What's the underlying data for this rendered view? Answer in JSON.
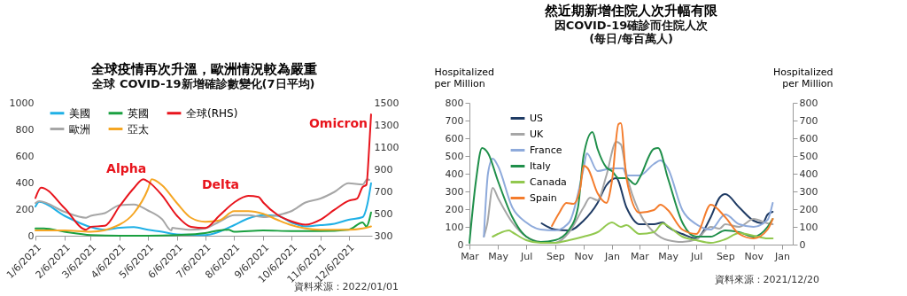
{
  "chart_data": [
    {
      "type": "line",
      "title": "全球疫情再次升溫，歐洲情況較為嚴重",
      "subtitle": "全球 COVID-19新增確診數變化(7日平均)",
      "xlim": [
        "2021-01-06",
        "2021-12-31"
      ],
      "xticks": [
        {
          "value": "2021-01-06",
          "label": "1/6/2021"
        },
        {
          "value": "2021-02-06",
          "label": "2/6/2021"
        },
        {
          "value": "2021-03-06",
          "label": "3/6/2021"
        },
        {
          "value": "2021-04-06",
          "label": "4/6/2021"
        },
        {
          "value": "2021-05-06",
          "label": "5/6/2021"
        },
        {
          "value": "2021-06-06",
          "label": "6/6/2021"
        },
        {
          "value": "2021-07-06",
          "label": "7/6/2021"
        },
        {
          "value": "2021-08-06",
          "label": "8/6/2021"
        },
        {
          "value": "2021-09-06",
          "label": "9/6/2021"
        },
        {
          "value": "2021-10-06",
          "label": "10/6/2021"
        },
        {
          "value": "2021-11-06",
          "label": "11/6/2021"
        },
        {
          "value": "2021-12-06",
          "label": "12/6/2021"
        }
      ],
      "ylim": [
        0,
        1000
      ],
      "yticks": [
        0,
        200,
        400,
        600,
        800,
        1000
      ],
      "y2lim": [
        300,
        1500
      ],
      "y2ticks": [
        300,
        500,
        700,
        900,
        1100,
        1300,
        1500
      ],
      "legend": "top left",
      "series": [
        {
          "name": "美國",
          "color": "#1fb0e6",
          "x": [
            "2021-01-06",
            "2021-01-10",
            "2021-02-06",
            "2021-03-06",
            "2021-03-21",
            "2021-04-06",
            "2021-04-21",
            "2021-05-06",
            "2021-05-21",
            "2021-06-06",
            "2021-07-06",
            "2021-07-21",
            "2021-08-06",
            "2021-08-21",
            "2021-09-06",
            "2021-09-21",
            "2021-10-06",
            "2021-10-21",
            "2021-11-06",
            "2021-11-21",
            "2021-12-06",
            "2021-12-21",
            "2021-12-26",
            "2021-12-30"
          ],
          "values": [
            220,
            255,
            150,
            65,
            45,
            60,
            65,
            45,
            30,
            10,
            5,
            30,
            80,
            130,
            155,
            150,
            100,
            70,
            80,
            90,
            120,
            140,
            235,
            395
          ]
        },
        {
          "name": "歐洲",
          "color": "#a6a6a6",
          "x": [
            "2021-01-06",
            "2021-01-10",
            "2021-02-06",
            "2021-03-01",
            "2021-03-06",
            "2021-03-21",
            "2021-04-06",
            "2021-04-21",
            "2021-05-06",
            "2021-05-21",
            "2021-05-31",
            "2021-06-01",
            "2021-06-06",
            "2021-06-21",
            "2021-07-06",
            "2021-07-21",
            "2021-08-06",
            "2021-08-21",
            "2021-09-06",
            "2021-09-21",
            "2021-10-06",
            "2021-10-21",
            "2021-11-06",
            "2021-11-21",
            "2021-12-06",
            "2021-12-21",
            "2021-12-26",
            "2021-12-28"
          ],
          "values": [
            245,
            260,
            180,
            135,
            150,
            170,
            230,
            235,
            190,
            125,
            40,
            60,
            55,
            45,
            55,
            105,
            155,
            155,
            140,
            155,
            185,
            250,
            280,
            330,
            395,
            385,
            425,
            420
          ]
        },
        {
          "name": "英國",
          "color": "#1aa040",
          "x": [
            "2021-01-06",
            "2021-01-15",
            "2021-02-06",
            "2021-03-06",
            "2021-04-06",
            "2021-05-06",
            "2021-06-06",
            "2021-07-06",
            "2021-07-21",
            "2021-07-31",
            "2021-08-06",
            "2021-09-06",
            "2021-10-06",
            "2021-11-06",
            "2021-12-06",
            "2021-12-21",
            "2021-12-25",
            "2021-12-30"
          ],
          "values": [
            55,
            55,
            30,
            5,
            0,
            0,
            5,
            20,
            40,
            45,
            30,
            40,
            35,
            35,
            45,
            100,
            70,
            175
          ]
        },
        {
          "name": "亞太",
          "color": "#f5a623",
          "x": [
            "2021-01-06",
            "2021-02-06",
            "2021-03-06",
            "2021-04-06",
            "2021-04-21",
            "2021-05-06",
            "2021-05-10",
            "2021-05-21",
            "2021-06-06",
            "2021-06-21",
            "2021-07-06",
            "2021-07-21",
            "2021-08-06",
            "2021-08-21",
            "2021-09-06",
            "2021-09-21",
            "2021-10-06",
            "2021-10-21",
            "2021-11-06",
            "2021-12-06",
            "2021-12-21",
            "2021-12-30"
          ],
          "values": [
            40,
            40,
            30,
            85,
            170,
            350,
            425,
            380,
            245,
            135,
            105,
            115,
            185,
            185,
            165,
            120,
            80,
            55,
            45,
            45,
            55,
            70
          ]
        },
        {
          "name": "全球(RHS)",
          "color": "#e8141c",
          "axis": "y2",
          "x": [
            "2021-01-06",
            "2021-01-12",
            "2021-02-06",
            "2021-03-01",
            "2021-03-06",
            "2021-03-21",
            "2021-04-06",
            "2021-04-21",
            "2021-05-01",
            "2021-05-06",
            "2021-05-21",
            "2021-06-06",
            "2021-06-21",
            "2021-07-06",
            "2021-07-21",
            "2021-08-06",
            "2021-08-21",
            "2021-09-01",
            "2021-09-06",
            "2021-09-21",
            "2021-10-06",
            "2021-10-21",
            "2021-11-06",
            "2021-11-21",
            "2021-12-06",
            "2021-12-15",
            "2021-12-21",
            "2021-12-25",
            "2021-12-28",
            "2021-12-30"
          ],
          "values": [
            640,
            735,
            550,
            355,
            380,
            390,
            570,
            730,
            810,
            790,
            665,
            480,
            380,
            370,
            480,
            600,
            660,
            650,
            600,
            490,
            430,
            400,
            445,
            535,
            615,
            635,
            740,
            760,
            1100,
            1395
          ]
        }
      ],
      "annotations": [
        "Alpha",
        "Delta",
        "Omicron",
        "資料來源：2022/01/01"
      ]
    },
    {
      "type": "line",
      "title": "然近期新增住院人次升幅有限",
      "subtitle": "因COVID-19確診而住院人次\n(每日/每百萬人)",
      "ylabel": "Hospitalized\nper Million",
      "y2label": "Hospitalized\nper Million",
      "xlim": [
        "2020-03-01",
        "2022-01-24"
      ],
      "xticks": [
        {
          "value": "2020-03-01",
          "label": "Mar"
        },
        {
          "value": "2020-05-01",
          "label": "May"
        },
        {
          "value": "2020-07-01",
          "label": "Jul"
        },
        {
          "value": "2020-09-01",
          "label": "Sep"
        },
        {
          "value": "2020-11-01",
          "label": "Nov"
        },
        {
          "value": "2021-01-01",
          "label": "Jan"
        },
        {
          "value": "2021-03-01",
          "label": "Mar"
        },
        {
          "value": "2021-05-01",
          "label": "May"
        },
        {
          "value": "2021-07-01",
          "label": "Jul"
        },
        {
          "value": "2021-09-01",
          "label": "Sep"
        },
        {
          "value": "2021-11-01",
          "label": "Nov"
        },
        {
          "value": "2022-01-01",
          "label": "Jan"
        }
      ],
      "ylim": [
        0,
        800
      ],
      "yticks": [
        0,
        100,
        200,
        300,
        400,
        500,
        600,
        700,
        800
      ],
      "y2lim": [
        0,
        800
      ],
      "y2ticks": [
        0,
        100,
        200,
        300,
        400,
        500,
        600,
        700,
        800
      ],
      "legend": "top left",
      "series": [
        {
          "name": "US",
          "color": "#1f3b64",
          "x": [
            "2020-08-03",
            "2020-09-01",
            "2020-10-01",
            "2020-11-01",
            "2020-12-01",
            "2020-12-20",
            "2021-01-10",
            "2021-02-01",
            "2021-03-01",
            "2021-04-01",
            "2021-04-20",
            "2021-05-01",
            "2021-06-01",
            "2021-07-01",
            "2021-08-01",
            "2021-08-20",
            "2021-09-01",
            "2021-10-01",
            "2021-11-01",
            "2021-11-20",
            "2021-12-01",
            "2021-12-12"
          ],
          "values": [
            120,
            85,
            80,
            135,
            235,
            335,
            375,
            210,
            115,
            115,
            125,
            100,
            60,
            35,
            155,
            265,
            285,
            210,
            135,
            120,
            170,
            185
          ]
        },
        {
          "name": "UK",
          "color": "#a6a6a6",
          "x": [
            "2020-04-01",
            "2020-04-08",
            "2020-04-20",
            "2020-05-01",
            "2020-06-01",
            "2020-07-01",
            "2020-08-01",
            "2020-09-01",
            "2020-10-01",
            "2020-11-01",
            "2020-11-15",
            "2020-12-01",
            "2020-12-20",
            "2021-01-10",
            "2021-01-20",
            "2021-02-01",
            "2021-03-01",
            "2021-04-01",
            "2021-05-01",
            "2021-06-01",
            "2021-07-01",
            "2021-08-01",
            "2021-08-20",
            "2021-09-01",
            "2021-10-01",
            "2021-11-01",
            "2021-12-01",
            "2021-12-12"
          ],
          "values": [
            45,
            115,
            320,
            265,
            125,
            45,
            15,
            10,
            70,
            210,
            265,
            250,
            390,
            580,
            565,
            400,
            180,
            70,
            25,
            15,
            30,
            100,
            90,
            115,
            100,
            145,
            120,
            115
          ]
        },
        {
          "name": "France",
          "color": "#8eaadb",
          "x": [
            "2020-04-01",
            "2020-04-10",
            "2020-04-20",
            "2020-05-01",
            "2020-06-01",
            "2020-07-01",
            "2020-08-01",
            "2020-09-01",
            "2020-10-01",
            "2020-11-01",
            "2020-11-08",
            "2020-12-01",
            "2021-01-01",
            "2021-01-25",
            "2021-02-01",
            "2021-03-01",
            "2021-04-01",
            "2021-04-15",
            "2021-05-01",
            "2021-06-01",
            "2021-07-01",
            "2021-08-01",
            "2021-09-01",
            "2021-10-01",
            "2021-11-01",
            "2021-12-01",
            "2021-12-12"
          ],
          "values": [
            45,
            405,
            485,
            445,
            210,
            125,
            85,
            80,
            125,
            430,
            515,
            415,
            430,
            430,
            390,
            390,
            455,
            475,
            430,
            195,
            115,
            85,
            170,
            115,
            100,
            140,
            235
          ]
        },
        {
          "name": "Italy",
          "color": "#1f8f4a",
          "x": [
            "2020-03-01",
            "2020-03-15",
            "2020-03-28",
            "2020-04-10",
            "2020-05-01",
            "2020-06-01",
            "2020-07-01",
            "2020-08-01",
            "2020-09-01",
            "2020-10-01",
            "2020-10-20",
            "2020-11-01",
            "2020-11-20",
            "2020-12-01",
            "2020-12-20",
            "2021-01-01",
            "2021-01-15",
            "2021-02-01",
            "2021-02-20",
            "2021-03-01",
            "2021-04-01",
            "2021-04-10",
            "2021-05-01",
            "2021-06-01",
            "2021-07-01",
            "2021-08-01",
            "2021-09-01",
            "2021-10-01",
            "2021-11-01",
            "2021-12-01",
            "2021-12-12"
          ],
          "values": [
            10,
            360,
            545,
            515,
            360,
            155,
            45,
            15,
            25,
            85,
            210,
            500,
            635,
            540,
            435,
            415,
            375,
            375,
            340,
            375,
            540,
            545,
            375,
            125,
            45,
            45,
            80,
            70,
            45,
            100,
            145
          ]
        },
        {
          "name": "Canada",
          "color": "#92c84f",
          "x": [
            "2020-04-20",
            "2020-05-01",
            "2020-05-25",
            "2020-06-01",
            "2020-07-01",
            "2020-08-01",
            "2020-09-01",
            "2020-10-01",
            "2020-11-01",
            "2020-12-01",
            "2021-01-01",
            "2021-01-20",
            "2021-02-01",
            "2021-03-01",
            "2021-04-01",
            "2021-04-20",
            "2021-05-01",
            "2021-06-01",
            "2021-07-01",
            "2021-08-01",
            "2021-09-01",
            "2021-10-01",
            "2021-11-01",
            "2021-12-01",
            "2021-12-12"
          ],
          "values": [
            45,
            60,
            80,
            70,
            25,
            10,
            10,
            25,
            45,
            70,
            125,
            100,
            110,
            60,
            70,
            120,
            105,
            45,
            25,
            10,
            30,
            65,
            50,
            35,
            35
          ]
        },
        {
          "name": "Spain",
          "color": "#f47c2c",
          "x": [
            "2020-08-25",
            "2020-09-10",
            "2020-09-25",
            "2020-10-10",
            "2020-10-25",
            "2020-11-01",
            "2020-11-10",
            "2020-12-01",
            "2020-12-20",
            "2021-01-01",
            "2021-01-15",
            "2021-01-20",
            "2021-02-01",
            "2021-03-01",
            "2021-04-01",
            "2021-04-15",
            "2021-05-01",
            "2021-06-01",
            "2021-07-01",
            "2021-08-01",
            "2021-09-01",
            "2021-10-01",
            "2021-11-01",
            "2021-12-01",
            "2021-12-12"
          ],
          "values": [
            105,
            180,
            235,
            230,
            320,
            445,
            430,
            290,
            235,
            360,
            680,
            685,
            375,
            180,
            195,
            225,
            195,
            85,
            60,
            225,
            155,
            60,
            35,
            85,
            145
          ]
        }
      ],
      "annotations": [
        "資料來源：2021/12/20"
      ]
    }
  ]
}
